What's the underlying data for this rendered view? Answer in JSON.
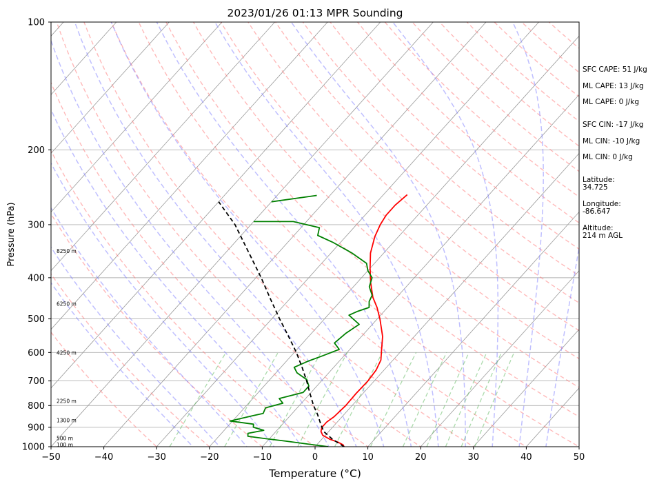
{
  "chart_data": {
    "type": "line",
    "title": "2023/01/26 01:13 MPR Sounding",
    "xlabel": "Temperature (°C)",
    "ylabel": "Pressure (hPa)",
    "xlim": [
      -50,
      50
    ],
    "ylim": [
      1000,
      100
    ],
    "y_scale": "log",
    "x_ticks": [
      -50,
      -40,
      -30,
      -20,
      -10,
      0,
      10,
      20,
      30,
      40,
      50
    ],
    "y_ticks": [
      100,
      200,
      300,
      400,
      500,
      600,
      700,
      800,
      900,
      1000
    ],
    "series": [
      {
        "name": "temperature",
        "color": "#ff0000",
        "points": [
          [
            5.5,
            1000
          ],
          [
            5.0,
            990
          ],
          [
            3.5,
            975
          ],
          [
            1.5,
            960
          ],
          [
            -0.5,
            940
          ],
          [
            -1.5,
            920
          ],
          [
            -2.0,
            900
          ],
          [
            -2.0,
            875
          ],
          [
            -1.5,
            850
          ],
          [
            -1.2,
            800
          ],
          [
            -1.3,
            750
          ],
          [
            -1.2,
            700
          ],
          [
            -1.5,
            660
          ],
          [
            -2.3,
            625
          ],
          [
            -3.5,
            600
          ],
          [
            -6.0,
            550
          ],
          [
            -9.5,
            500
          ],
          [
            -12.0,
            470
          ],
          [
            -14.5,
            445
          ],
          [
            -17.5,
            410
          ],
          [
            -20.0,
            380
          ],
          [
            -22.5,
            350
          ],
          [
            -24.5,
            320
          ],
          [
            -25.5,
            300
          ],
          [
            -26.0,
            285
          ],
          [
            -26.0,
            270
          ],
          [
            -25.5,
            255
          ]
        ]
      },
      {
        "name": "dewpoint",
        "color": "#008000",
        "points": [
          [
            2.5,
            1000
          ],
          [
            -2.0,
            985
          ],
          [
            -6.5,
            970
          ],
          [
            -10.5,
            958
          ],
          [
            -14.5,
            945
          ],
          [
            -15.0,
            930
          ],
          [
            -12.5,
            915
          ],
          [
            -15.0,
            900
          ],
          [
            -15.5,
            885
          ],
          [
            -20.5,
            870
          ],
          [
            -17.0,
            845
          ],
          [
            -15.5,
            835
          ],
          [
            -16.0,
            810
          ],
          [
            -13.5,
            790
          ],
          [
            -15.0,
            770
          ],
          [
            -11.5,
            745
          ],
          [
            -11.5,
            720
          ],
          [
            -13.0,
            695
          ],
          [
            -16.0,
            670
          ],
          [
            -17.5,
            650
          ],
          [
            -16.0,
            630
          ],
          [
            -14.0,
            610
          ],
          [
            -12.0,
            590
          ],
          [
            -14.0,
            570
          ],
          [
            -13.5,
            540
          ],
          [
            -12.5,
            515
          ],
          [
            -16.0,
            490
          ],
          [
            -15.0,
            480
          ],
          [
            -13.5,
            470
          ],
          [
            -14.5,
            455
          ],
          [
            -15.0,
            440
          ],
          [
            -17.0,
            420
          ],
          [
            -18.0,
            400
          ],
          [
            -20.0,
            385
          ],
          [
            -21.5,
            370
          ],
          [
            -26.0,
            350
          ],
          [
            -31.5,
            330
          ],
          [
            -35.5,
            318
          ],
          [
            -36.5,
            305
          ],
          [
            -42.5,
            295
          ],
          [
            -50.0,
            295
          ]
        ],
        "upper_segment": [
          [
            -50.0,
            265
          ],
          [
            -42.5,
            256
          ]
        ]
      },
      {
        "name": "parcel",
        "color": "#000000",
        "style": "dashed",
        "points": [
          [
            5.5,
            1000
          ],
          [
            2.0,
            960
          ],
          [
            -1.0,
            920
          ],
          [
            -3.0,
            880
          ],
          [
            -5.0,
            840
          ],
          [
            -7.3,
            800
          ],
          [
            -10.0,
            750
          ],
          [
            -12.8,
            700
          ],
          [
            -16.0,
            650
          ],
          [
            -19.6,
            600
          ],
          [
            -23.8,
            550
          ],
          [
            -28.5,
            500
          ],
          [
            -33.5,
            450
          ],
          [
            -39.0,
            400
          ],
          [
            -45.5,
            350
          ],
          [
            -53.0,
            300
          ],
          [
            -60.0,
            265
          ]
        ]
      }
    ],
    "height_labels": [
      {
        "text": "100 m",
        "p": 988
      },
      {
        "text": "500 m",
        "p": 955
      },
      {
        "text": "1300 m",
        "p": 866
      },
      {
        "text": "2250 m",
        "p": 780
      },
      {
        "text": "4250 m",
        "p": 600
      },
      {
        "text": "6250 m",
        "p": 460
      },
      {
        "text": "8250 m",
        "p": 346
      }
    ],
    "stats": [
      "SFC CAPE: 51 J/kg",
      "ML CAPE: 13 J/kg",
      "ML CAPE: 0 J/kg",
      "SFC CIN: -17 J/kg",
      "ML CIN: -10 J/kg",
      "ML CIN: 0 J/kg",
      "Latitude:",
      "34.725",
      "Longitude:",
      "-86.647",
      "Altitude:",
      "214 m AGL"
    ],
    "grid": true,
    "colors": {
      "dry_adiabat": "#ff8080",
      "moist_adiabat": "#8080ff",
      "mixing_ratio": "#66bb66",
      "isotherm": "#999999"
    }
  }
}
